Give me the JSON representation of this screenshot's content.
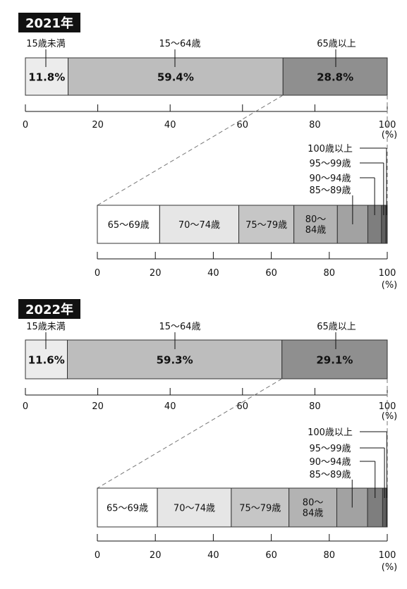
{
  "colors": {
    "under15": "#ececec",
    "age15_64": "#bdbdbd",
    "age65plus": "#8f8f8f",
    "sub": [
      "#ffffff",
      "#e6e6e6",
      "#c6c6c6",
      "#b3b3b3",
      "#a2a2a2",
      "#7e7e7e",
      "#5f5f5f",
      "#3f3f3f"
    ]
  },
  "chart_data": [
    {
      "type": "bar",
      "orientation": "horizontal-stacked",
      "title": "2021年",
      "categories": [
        "15歳未満",
        "15〜64歳",
        "65歳以上"
      ],
      "values": [
        11.8,
        59.4,
        28.8
      ],
      "value_labels": [
        "11.8%",
        "59.4%",
        "28.8%"
      ],
      "xlim": [
        0,
        100
      ],
      "xticks": [
        "0",
        "20",
        "40",
        "60",
        "80",
        "100"
      ],
      "unit": "(%)",
      "breakdown": {
        "of": "65歳以上",
        "categories": [
          "65〜69歳",
          "70〜74歳",
          "75〜79歳",
          "80〜84歳",
          "85〜89歳",
          "90〜94歳",
          "95〜99歳",
          "100歳以上"
        ],
        "values": [
          21.5,
          27.3,
          19.0,
          15.0,
          10.5,
          4.7,
          1.5,
          0.5
        ],
        "xlim": [
          0,
          100
        ],
        "xticks": [
          "0",
          "20",
          "40",
          "60",
          "80",
          "100"
        ],
        "unit": "(%)"
      }
    },
    {
      "type": "bar",
      "orientation": "horizontal-stacked",
      "title": "2022年",
      "categories": [
        "15歳未満",
        "15〜64歳",
        "65歳以上"
      ],
      "values": [
        11.6,
        59.3,
        29.1
      ],
      "value_labels": [
        "11.6%",
        "59.3%",
        "29.1%"
      ],
      "xlim": [
        0,
        100
      ],
      "xticks": [
        "0",
        "20",
        "40",
        "60",
        "80",
        "100"
      ],
      "unit": "(%)",
      "breakdown": {
        "of": "65歳以上",
        "categories": [
          "65〜69歳",
          "70〜74歳",
          "75〜79歳",
          "80〜84歳",
          "85〜89歳",
          "90〜94歳",
          "95〜99歳",
          "100歳以上"
        ],
        "values": [
          20.7,
          25.5,
          19.9,
          16.5,
          10.6,
          5.2,
          1.3,
          0.3
        ],
        "xlim": [
          0,
          100
        ],
        "xticks": [
          "0",
          "20",
          "40",
          "60",
          "80",
          "100"
        ],
        "unit": "(%)"
      }
    }
  ]
}
